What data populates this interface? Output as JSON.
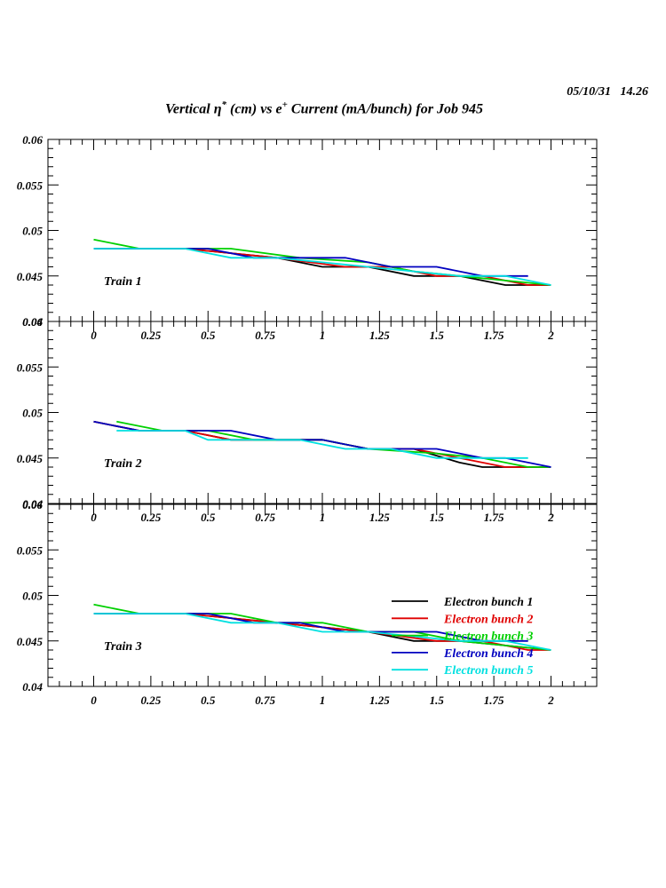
{
  "header": {
    "timestamp": "05/10/31   14.26",
    "title_part1": "Vertical ",
    "title_eta": "η",
    "title_sup1": "*",
    "title_part2": " (cm) vs e",
    "title_sup2": "+",
    "title_part3": " Current (mA/bunch) for Job 945"
  },
  "chart_data": [
    {
      "type": "line",
      "panel_label": "Train 1",
      "xlim": [
        -0.2,
        2.2
      ],
      "ylim": [
        0.04,
        0.06
      ],
      "x_ticks": [
        "0",
        "0.25",
        "0.5",
        "0.75",
        "1",
        "1.25",
        "1.5",
        "1.75",
        "2"
      ],
      "y_ticks": [
        "0.04",
        "0.045",
        "0.05",
        "0.055",
        "0.06"
      ],
      "series": [
        {
          "color": "#000000",
          "points": [
            [
              0,
              0.048
            ],
            [
              0.4,
              0.048
            ],
            [
              0.6,
              0.0475
            ],
            [
              0.8,
              0.047
            ],
            [
              1.0,
              0.046
            ],
            [
              1.2,
              0.046
            ],
            [
              1.4,
              0.045
            ],
            [
              1.6,
              0.045
            ],
            [
              1.8,
              0.044
            ],
            [
              2.0,
              0.044
            ]
          ]
        },
        {
          "color": "#e00000",
          "points": [
            [
              0,
              0.048
            ],
            [
              0.4,
              0.048
            ],
            [
              0.6,
              0.0475
            ],
            [
              0.8,
              0.047
            ],
            [
              1.1,
              0.046
            ],
            [
              1.3,
              0.046
            ],
            [
              1.5,
              0.045
            ],
            [
              1.7,
              0.045
            ],
            [
              1.9,
              0.044
            ],
            [
              2.0,
              0.044
            ]
          ]
        },
        {
          "color": "#00d000",
          "points": [
            [
              0,
              0.049
            ],
            [
              0.2,
              0.048
            ],
            [
              0.6,
              0.048
            ],
            [
              0.9,
              0.047
            ],
            [
              1.2,
              0.0465
            ],
            [
              1.4,
              0.0455
            ],
            [
              1.6,
              0.045
            ],
            [
              1.8,
              0.0445
            ],
            [
              2.0,
              0.044
            ]
          ]
        },
        {
          "color": "#0000c0",
          "points": [
            [
              0,
              0.048
            ],
            [
              0.5,
              0.048
            ],
            [
              0.7,
              0.047
            ],
            [
              1.1,
              0.047
            ],
            [
              1.3,
              0.046
            ],
            [
              1.5,
              0.046
            ],
            [
              1.7,
              0.045
            ],
            [
              1.9,
              0.045
            ]
          ]
        },
        {
          "color": "#00e0e0",
          "points": [
            [
              0,
              0.048
            ],
            [
              0.4,
              0.048
            ],
            [
              0.6,
              0.047
            ],
            [
              0.8,
              0.047
            ],
            [
              1.0,
              0.0465
            ],
            [
              1.2,
              0.046
            ],
            [
              1.6,
              0.045
            ],
            [
              1.8,
              0.045
            ],
            [
              2.0,
              0.044
            ]
          ]
        }
      ]
    },
    {
      "type": "line",
      "panel_label": "Train 2",
      "xlim": [
        -0.2,
        2.2
      ],
      "ylim": [
        0.04,
        0.06
      ],
      "x_ticks": [
        "0",
        "0.25",
        "0.5",
        "0.75",
        "1",
        "1.25",
        "1.5",
        "1.75",
        "2"
      ],
      "y_ticks": [
        "0.04",
        "0.045",
        "0.05",
        "0.055",
        "0.06"
      ],
      "series": [
        {
          "color": "#000000",
          "points": [
            [
              0,
              0.049
            ],
            [
              0.2,
              0.048
            ],
            [
              0.4,
              0.048
            ],
            [
              0.6,
              0.047
            ],
            [
              1.0,
              0.047
            ],
            [
              1.2,
              0.046
            ],
            [
              1.4,
              0.046
            ],
            [
              1.6,
              0.0445
            ],
            [
              1.7,
              0.044
            ],
            [
              2.0,
              0.044
            ]
          ]
        },
        {
          "color": "#e00000",
          "points": [
            [
              0,
              0.049
            ],
            [
              0.2,
              0.048
            ],
            [
              0.4,
              0.048
            ],
            [
              0.6,
              0.047
            ],
            [
              1.0,
              0.047
            ],
            [
              1.2,
              0.046
            ],
            [
              1.4,
              0.046
            ],
            [
              1.6,
              0.045
            ],
            [
              1.8,
              0.044
            ],
            [
              2.0,
              0.044
            ]
          ]
        },
        {
          "color": "#00d000",
          "points": [
            [
              0.1,
              0.049
            ],
            [
              0.3,
              0.048
            ],
            [
              0.5,
              0.048
            ],
            [
              0.7,
              0.047
            ],
            [
              1.0,
              0.047
            ],
            [
              1.2,
              0.046
            ],
            [
              1.5,
              0.0455
            ],
            [
              1.7,
              0.045
            ],
            [
              1.9,
              0.044
            ],
            [
              2.0,
              0.044
            ]
          ]
        },
        {
          "color": "#0000c0",
          "points": [
            [
              0,
              0.049
            ],
            [
              0.2,
              0.048
            ],
            [
              0.6,
              0.048
            ],
            [
              0.8,
              0.047
            ],
            [
              1.0,
              0.047
            ],
            [
              1.2,
              0.046
            ],
            [
              1.5,
              0.046
            ],
            [
              1.7,
              0.045
            ],
            [
              1.8,
              0.045
            ],
            [
              2.0,
              0.044
            ]
          ]
        },
        {
          "color": "#00e0e0",
          "points": [
            [
              0.1,
              0.048
            ],
            [
              0.4,
              0.048
            ],
            [
              0.5,
              0.047
            ],
            [
              0.9,
              0.047
            ],
            [
              1.1,
              0.046
            ],
            [
              1.3,
              0.046
            ],
            [
              1.5,
              0.045
            ],
            [
              1.9,
              0.045
            ]
          ]
        }
      ]
    },
    {
      "type": "line",
      "panel_label": "Train 3",
      "xlim": [
        -0.2,
        2.2
      ],
      "ylim": [
        0.04,
        0.06
      ],
      "x_ticks": [
        "0",
        "0.25",
        "0.5",
        "0.75",
        "1",
        "1.25",
        "1.5",
        "1.75",
        "2"
      ],
      "y_ticks": [
        "0.04",
        "0.045",
        "0.05",
        "0.055",
        "0.06"
      ],
      "series": [
        {
          "color": "#000000",
          "points": [
            [
              0,
              0.048
            ],
            [
              0.4,
              0.048
            ],
            [
              0.6,
              0.0475
            ],
            [
              0.8,
              0.047
            ],
            [
              1.0,
              0.0465
            ],
            [
              1.2,
              0.046
            ],
            [
              1.4,
              0.045
            ],
            [
              1.6,
              0.045
            ],
            [
              1.8,
              0.0445
            ],
            [
              2.0,
              0.044
            ]
          ]
        },
        {
          "color": "#e00000",
          "points": [
            [
              0,
              0.048
            ],
            [
              0.4,
              0.048
            ],
            [
              0.6,
              0.0475
            ],
            [
              0.8,
              0.047
            ],
            [
              1.0,
              0.0465
            ],
            [
              1.2,
              0.046
            ],
            [
              1.5,
              0.045
            ],
            [
              1.7,
              0.045
            ],
            [
              1.9,
              0.044
            ],
            [
              2.0,
              0.044
            ]
          ]
        },
        {
          "color": "#00d000",
          "points": [
            [
              0,
              0.049
            ],
            [
              0.2,
              0.048
            ],
            [
              0.6,
              0.048
            ],
            [
              0.8,
              0.047
            ],
            [
              1.0,
              0.047
            ],
            [
              1.2,
              0.046
            ],
            [
              1.4,
              0.046
            ],
            [
              1.6,
              0.045
            ],
            [
              1.8,
              0.0445
            ],
            [
              2.0,
              0.044
            ]
          ]
        },
        {
          "color": "#0000c0",
          "points": [
            [
              0,
              0.048
            ],
            [
              0.5,
              0.048
            ],
            [
              0.7,
              0.047
            ],
            [
              0.9,
              0.047
            ],
            [
              1.1,
              0.046
            ],
            [
              1.5,
              0.046
            ],
            [
              1.7,
              0.045
            ],
            [
              1.9,
              0.045
            ]
          ]
        },
        {
          "color": "#00e0e0",
          "points": [
            [
              0,
              0.048
            ],
            [
              0.4,
              0.048
            ],
            [
              0.6,
              0.047
            ],
            [
              0.8,
              0.047
            ],
            [
              1.0,
              0.046
            ],
            [
              1.2,
              0.046
            ],
            [
              1.4,
              0.0455
            ],
            [
              1.6,
              0.045
            ],
            [
              1.8,
              0.045
            ],
            [
              2.0,
              0.044
            ]
          ]
        }
      ]
    }
  ],
  "legend": {
    "placement": "bottom-right of Train 3",
    "entries": [
      {
        "label": "Electron bunch 1",
        "color": "#000000"
      },
      {
        "label": "Electron bunch 2",
        "color": "#e00000"
      },
      {
        "label": "Electron bunch 3",
        "color": "#00d000"
      },
      {
        "label": "Electron bunch 4",
        "color": "#0000c0"
      },
      {
        "label": "Electron bunch 5",
        "color": "#00e0e0"
      }
    ]
  }
}
